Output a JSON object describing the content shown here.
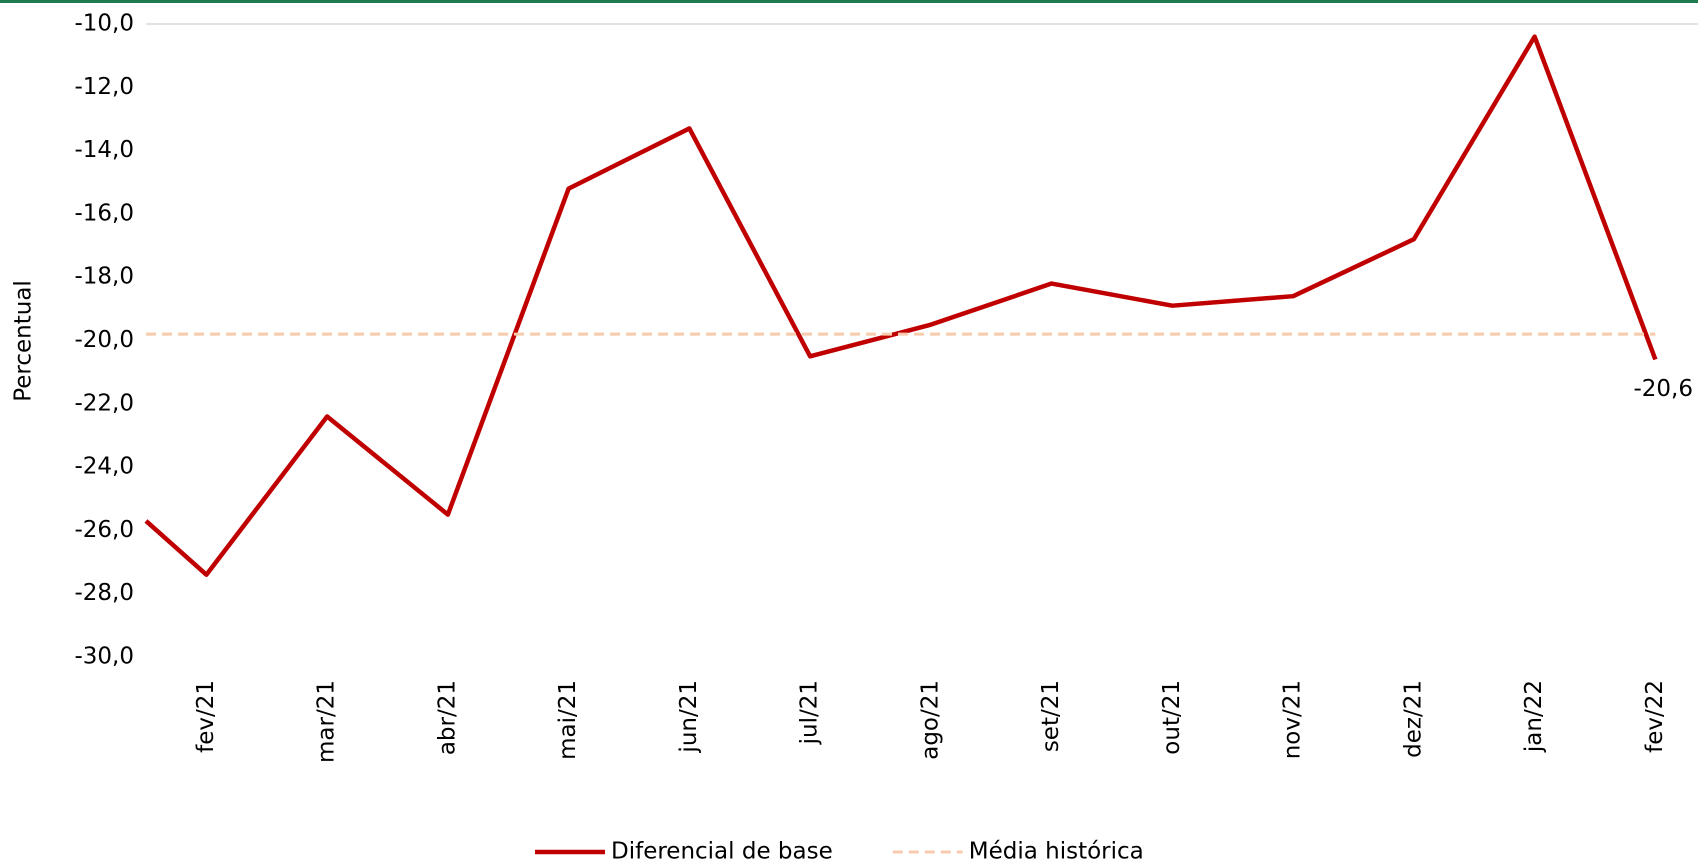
{
  "chart_data": {
    "type": "line",
    "y_label": "Percentual",
    "categories": [
      null,
      "fev/21",
      "mar/21",
      "abr/21",
      "mai/21",
      "jun/21",
      "jul/21",
      "ago/21",
      "set/21",
      "out/21",
      "nov/21",
      "dez/21",
      "jan/22",
      "fev/22"
    ],
    "series": [
      {
        "name": "Diferencial de base",
        "color": "#c00000",
        "style": "solid",
        "values": [
          -25.7,
          -27.4,
          -22.4,
          -25.5,
          -15.2,
          -13.3,
          -20.5,
          -19.5,
          -18.2,
          -18.9,
          -18.6,
          -16.8,
          -10.4,
          -20.6
        ],
        "value_labels": [
          null,
          null,
          null,
          null,
          null,
          null,
          null,
          null,
          null,
          null,
          null,
          null,
          null,
          "-20,6"
        ]
      },
      {
        "name": "Média histórica",
        "color": "#f8cbad",
        "style": "dashed",
        "values": [
          -19.8,
          -19.8,
          -19.8,
          -19.8,
          -19.8,
          -19.8,
          -19.8,
          -19.8,
          -19.8,
          -19.8,
          -19.8,
          -19.8,
          -19.8,
          -19.8
        ]
      }
    ],
    "ylim": [
      -30,
      -10
    ],
    "yticks": [
      {
        "value": -10,
        "label": "-10,0"
      },
      {
        "value": -12,
        "label": "-12,0"
      },
      {
        "value": -14,
        "label": "-14,0"
      },
      {
        "value": -16,
        "label": "-16,0"
      },
      {
        "value": -18,
        "label": "-18,0"
      },
      {
        "value": -20,
        "label": "-20,0"
      },
      {
        "value": -22,
        "label": "-22,0"
      },
      {
        "value": -24,
        "label": "-24,0"
      },
      {
        "value": -26,
        "label": "-26,0"
      },
      {
        "value": -28,
        "label": "-28,0"
      },
      {
        "value": -30,
        "label": "-30,0"
      }
    ],
    "grid": false,
    "legend": "bottom"
  }
}
